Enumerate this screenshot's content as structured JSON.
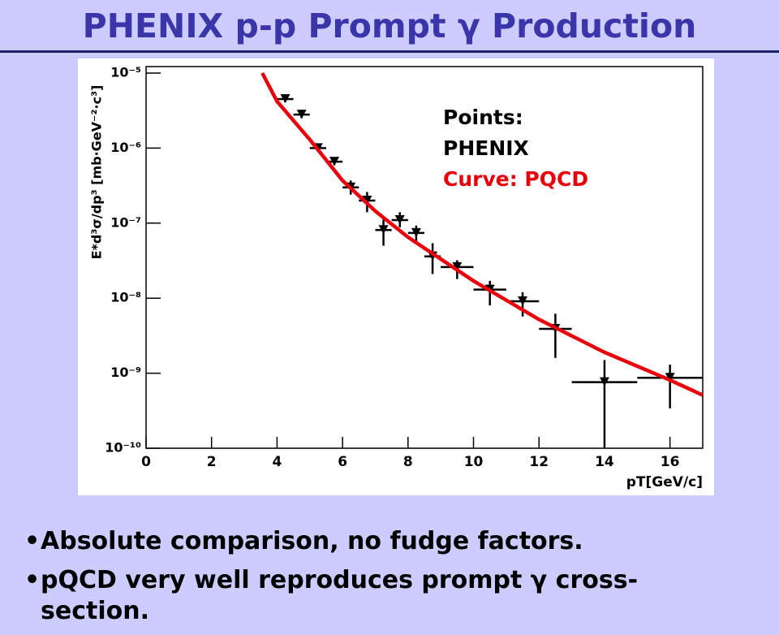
{
  "slide": {
    "title": "PHENIX p-p Prompt γ Production",
    "bullets": [
      "Absolute comparison, no fudge factors.",
      "pQCD very well reproduces prompt γ cross-section."
    ]
  },
  "chart_data": {
    "type": "scatter",
    "x_label": "pT[GeV/c]",
    "y_label": "E*d³σ/dp³  [mb·GeV⁻²·c³]",
    "annotations": [
      {
        "text": "Points:",
        "color": "#000000"
      },
      {
        "text": "PHENIX",
        "color": "#000000"
      },
      {
        "text": "Curve: PQCD",
        "color": "#e8000b"
      }
    ],
    "xlim": [
      0,
      17
    ],
    "xticks": [
      0,
      2,
      4,
      6,
      8,
      10,
      12,
      14,
      16
    ],
    "ylim": [
      1e-10,
      1e-05
    ],
    "log_y": true,
    "yticks": [
      {
        "value": 1e-10,
        "label": "10⁻¹⁰"
      },
      {
        "value": 1e-09,
        "label": "10⁻⁹"
      },
      {
        "value": 1e-08,
        "label": "10⁻⁸"
      },
      {
        "value": 1e-07,
        "label": "10⁻⁷"
      },
      {
        "value": 1e-06,
        "label": "10⁻⁶"
      },
      {
        "value": 1e-05,
        "label": "10⁻⁵"
      }
    ],
    "series": [
      {
        "name": "PHENIX",
        "type": "points",
        "color": "#000000",
        "x": [
          4.25,
          4.75,
          5.25,
          5.75,
          6.25,
          6.75,
          7.25,
          7.75,
          8.25,
          8.75,
          9.5,
          10.5,
          11.5,
          12.5,
          14,
          16
        ],
        "xerr": [
          0.25,
          0.25,
          0.25,
          0.25,
          0.25,
          0.25,
          0.25,
          0.25,
          0.25,
          0.25,
          0.5,
          0.5,
          0.5,
          0.5,
          1,
          1
        ],
        "values": [
          4.5e-06,
          2.8e-06,
          1e-06,
          6.6e-07,
          3e-07,
          2e-07,
          8.1e-08,
          1.1e-07,
          7.4e-08,
          3.6e-08,
          2.6e-08,
          1.3e-08,
          9.1e-09,
          3.9e-09,
          7.6e-10,
          8.7e-10
        ],
        "y_lo": [
          4.1e-06,
          2.5e-06,
          9e-07,
          5.9e-07,
          2.4e-07,
          1.4e-07,
          5e-08,
          8.8e-08,
          5.3e-08,
          2.1e-08,
          1.8e-08,
          8e-09,
          5.7e-09,
          1.6e-09,
          1e-10,
          3.4e-10
        ],
        "y_hi": [
          4.9e-06,
          3.1e-06,
          1.1e-06,
          7.3e-07,
          3.7e-07,
          2.6e-07,
          1.2e-07,
          1.4e-07,
          9.3e-08,
          5.4e-08,
          3.2e-08,
          1.7e-08,
          1.2e-08,
          6.2e-09,
          1.5e-09,
          1.3e-09
        ]
      },
      {
        "name": "PQCD",
        "type": "line",
        "color": "#e8000b",
        "x": [
          3.55,
          4,
          5,
          6,
          7,
          8,
          10,
          12,
          14,
          16,
          17
        ],
        "values": [
          1e-05,
          4.2e-06,
          1.3e-06,
          3.7e-07,
          1.45e-07,
          6.5e-08,
          1.7e-08,
          5.2e-09,
          1.9e-09,
          8.1e-10,
          5.1e-10
        ]
      }
    ]
  }
}
